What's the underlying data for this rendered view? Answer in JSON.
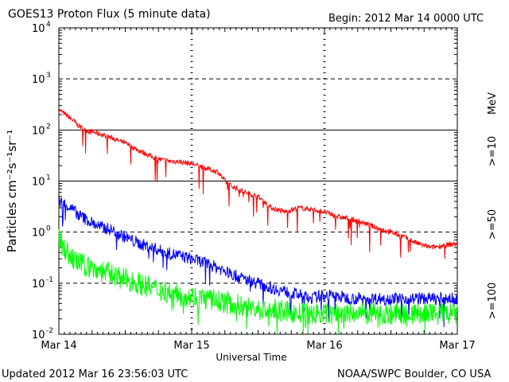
{
  "header": {
    "title": "GOES13 Proton Flux (5 minute data)",
    "begin": "Begin: 2012 Mar 14 0000 UTC"
  },
  "footer": {
    "updated": "Updated 2012 Mar 16 23:56:03 UTC",
    "credit": "NOAA/SWPC Boulder, CO USA"
  },
  "chart_data": {
    "type": "line",
    "title": "GOES13 Proton Flux (5 minute data)",
    "xlabel": "Universal Time",
    "ylabel": "Particles cm⁻²s⁻¹sr⁻¹",
    "y_scale": "log",
    "ylim": [
      0.01,
      10000
    ],
    "xlim": [
      0,
      3
    ],
    "x_units": "days since Mar 14 0000 UTC",
    "x_tick_labels": [
      "Mar 14",
      "Mar 15",
      "Mar 16",
      "Mar 17"
    ],
    "y_tick_labels": [
      {
        "base": "10",
        "exp": "-2"
      },
      {
        "base": "10",
        "exp": "-1"
      },
      {
        "base": "10",
        "exp": "0"
      },
      {
        "base": "10",
        "exp": "1"
      },
      {
        "base": "10",
        "exp": "2"
      },
      {
        "base": "10",
        "exp": "3"
      },
      {
        "base": "10",
        "exp": "4"
      }
    ],
    "threshold_lines": [
      10,
      100
    ],
    "grid": true,
    "legend_position": "right",
    "unit_label": "MeV",
    "series": [
      {
        "name": ">=10",
        "color": "#ff0000",
        "x": [
          0,
          0.05,
          0.1,
          0.15,
          0.2,
          0.3,
          0.4,
          0.5,
          0.6,
          0.7,
          0.8,
          0.9,
          1.0,
          1.1,
          1.2,
          1.25,
          1.3,
          1.4,
          1.5,
          1.6,
          1.7,
          1.8,
          1.9,
          2.0,
          2.1,
          2.2,
          2.3,
          2.4,
          2.5,
          2.6,
          2.7,
          2.8,
          2.9,
          3.0
        ],
        "values": [
          250,
          200,
          160,
          120,
          100,
          85,
          70,
          55,
          40,
          30,
          25,
          24,
          22,
          18,
          15,
          10,
          8,
          6,
          5,
          3,
          2.5,
          3,
          2.8,
          2.5,
          2,
          1.8,
          1.5,
          1.2,
          1,
          0.8,
          0.6,
          0.5,
          0.55,
          0.6
        ]
      },
      {
        "name": ">=50",
        "color": "#0000ff",
        "x": [
          0,
          0.05,
          0.1,
          0.15,
          0.2,
          0.3,
          0.4,
          0.5,
          0.6,
          0.7,
          0.8,
          0.9,
          1.0,
          1.1,
          1.2,
          1.3,
          1.4,
          1.5,
          1.6,
          1.7,
          1.8,
          1.9,
          2.0,
          2.2,
          2.4,
          2.6,
          2.8,
          3.0
        ],
        "values": [
          4,
          3.5,
          2.8,
          2.2,
          1.8,
          1.3,
          1.1,
          0.8,
          0.6,
          0.5,
          0.4,
          0.35,
          0.3,
          0.25,
          0.2,
          0.15,
          0.12,
          0.1,
          0.08,
          0.07,
          0.06,
          0.05,
          0.06,
          0.05,
          0.05,
          0.05,
          0.05,
          0.05
        ]
      },
      {
        "name": ">=100",
        "color": "#00ff00",
        "x": [
          0,
          0.05,
          0.1,
          0.15,
          0.2,
          0.3,
          0.4,
          0.5,
          0.6,
          0.7,
          0.8,
          0.9,
          1.0,
          1.1,
          1.2,
          1.3,
          1.4,
          1.5,
          1.6,
          1.7,
          1.8,
          1.9,
          2.0,
          2.2,
          2.4,
          2.6,
          2.8,
          3.0
        ],
        "values": [
          0.7,
          0.45,
          0.3,
          0.25,
          0.22,
          0.18,
          0.15,
          0.12,
          0.1,
          0.08,
          0.07,
          0.06,
          0.055,
          0.05,
          0.045,
          0.04,
          0.035,
          0.03,
          0.03,
          0.028,
          0.025,
          0.025,
          0.025,
          0.025,
          0.025,
          0.025,
          0.025,
          0.025
        ]
      }
    ]
  }
}
